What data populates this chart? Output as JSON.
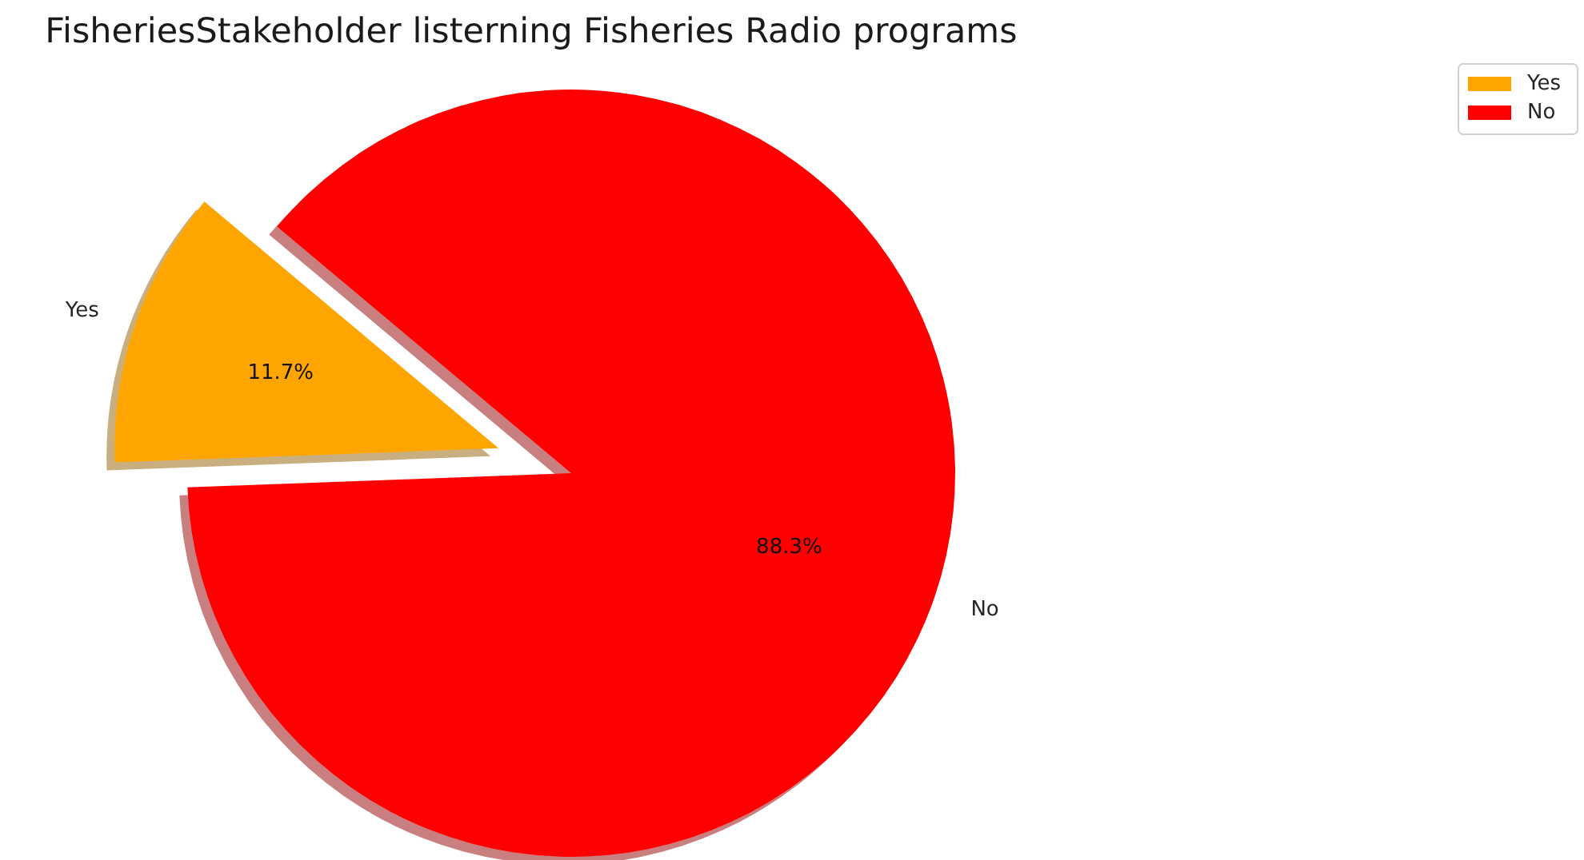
{
  "chart_data": {
    "type": "pie",
    "title": "FisheriesStakeholder listerning Fisheries Radio programs",
    "categories": [
      "Yes",
      "No"
    ],
    "values": [
      11.7,
      88.3
    ],
    "colors": [
      "#ffa500",
      "#ff0000"
    ],
    "value_labels": [
      "11.7%",
      "88.3%"
    ],
    "legend": "top right"
  }
}
